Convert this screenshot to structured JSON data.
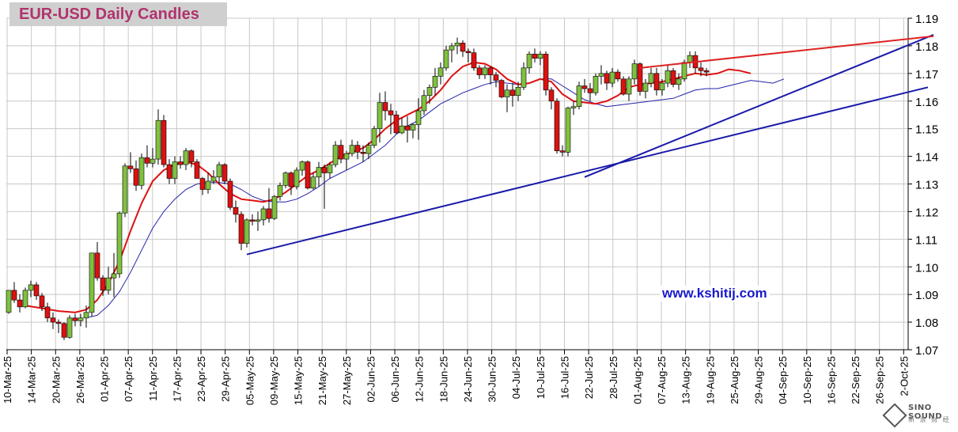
{
  "chart_data": {
    "type": "candlestick",
    "title": "EUR-USD Daily  Candles",
    "watermark": "www.kshitij.com",
    "logo": {
      "line1": "SINO SOUND",
      "line2": "新 浪 财 经"
    },
    "ylim": [
      1.07,
      1.19
    ],
    "y_ticks": [
      "1.19",
      "1.18",
      "1.17",
      "1.16",
      "1.15",
      "1.14",
      "1.13",
      "1.12",
      "1.11",
      "1.10",
      "1.09",
      "1.08",
      "1.07"
    ],
    "x_ticks": [
      "10-Mar-25",
      "14-Mar-25",
      "20-Mar-25",
      "26-Mar-25",
      "01-Apr-25",
      "07-Apr-25",
      "11-Apr-25",
      "17-Apr-25",
      "23-Apr-25",
      "29-Apr-25",
      "05-May-25",
      "09-May-25",
      "15-May-25",
      "21-May-25",
      "27-May-25",
      "02-Jun-25",
      "06-Jun-25",
      "12-Jun-25",
      "18-Jun-25",
      "24-Jun-25",
      "30-Jun-25",
      "04-Jul-25",
      "10-Jul-25",
      "16-Jul-25",
      "22-Jul-25",
      "28-Jul-25",
      "01-Aug-25",
      "07-Aug-25",
      "13-Aug-25",
      "19-Aug-25",
      "25-Aug-25",
      "29-Aug-25",
      "04-Sep-25",
      "10-Sep-25",
      "16-Sep-25",
      "22-Sep-25",
      "26-Sep-25",
      "2-Oct-25"
    ],
    "colors": {
      "up": "#80c040",
      "down": "#dd1111",
      "ma_fast": "#dd1111",
      "ma_slow": "#2222aa",
      "trend_blue": "#1a1aaa",
      "trend_red": "#dd2222",
      "grid": "#c8c8c8"
    },
    "candles": [
      [
        1.0835,
        1.0915,
        1.083,
        1.0915
      ],
      [
        1.0915,
        1.0945,
        1.087,
        1.088
      ],
      [
        1.088,
        1.09,
        1.0835,
        1.0855
      ],
      [
        1.0855,
        1.0925,
        1.085,
        1.0915
      ],
      [
        1.0915,
        1.095,
        1.089,
        1.0935
      ],
      [
        1.0935,
        1.0945,
        1.088,
        1.0895
      ],
      [
        1.0895,
        1.0905,
        1.084,
        1.0855
      ],
      [
        1.0855,
        1.087,
        1.08,
        1.0815
      ],
      [
        1.0815,
        1.0835,
        1.0775,
        1.08
      ],
      [
        1.08,
        1.081,
        1.076,
        1.0795
      ],
      [
        1.0795,
        1.08,
        1.0735,
        1.0745
      ],
      [
        1.0745,
        1.0825,
        1.074,
        1.0815
      ],
      [
        1.0815,
        1.083,
        1.0785,
        1.0805
      ],
      [
        1.0805,
        1.083,
        1.0785,
        1.0815
      ],
      [
        1.0815,
        1.086,
        1.078,
        1.0835
      ],
      [
        1.0835,
        1.105,
        1.082,
        1.105
      ],
      [
        1.105,
        1.109,
        1.095,
        1.096
      ],
      [
        1.096,
        1.097,
        1.0895,
        1.0915
      ],
      [
        1.0915,
        1.1,
        1.09,
        1.096
      ],
      [
        1.096,
        1.105,
        1.089,
        1.0975
      ],
      [
        1.0975,
        1.12,
        1.096,
        1.1195
      ],
      [
        1.1195,
        1.1375,
        1.118,
        1.1365
      ],
      [
        1.1365,
        1.1415,
        1.134,
        1.1355
      ],
      [
        1.1355,
        1.1385,
        1.1275,
        1.1295
      ],
      [
        1.1295,
        1.141,
        1.128,
        1.1395
      ],
      [
        1.1395,
        1.144,
        1.136,
        1.1375
      ],
      [
        1.1375,
        1.143,
        1.136,
        1.139
      ],
      [
        1.139,
        1.157,
        1.137,
        1.153
      ],
      [
        1.153,
        1.155,
        1.136,
        1.137
      ],
      [
        1.137,
        1.139,
        1.13,
        1.132
      ],
      [
        1.132,
        1.14,
        1.13,
        1.138
      ],
      [
        1.138,
        1.14,
        1.1355,
        1.137
      ],
      [
        1.137,
        1.143,
        1.135,
        1.142
      ],
      [
        1.142,
        1.1425,
        1.136,
        1.138
      ],
      [
        1.138,
        1.139,
        1.132,
        1.132
      ],
      [
        1.132,
        1.1325,
        1.126,
        1.128
      ],
      [
        1.128,
        1.134,
        1.1265,
        1.131
      ],
      [
        1.131,
        1.135,
        1.13,
        1.1325
      ],
      [
        1.1325,
        1.138,
        1.13,
        1.137
      ],
      [
        1.137,
        1.1375,
        1.13,
        1.131
      ],
      [
        1.131,
        1.132,
        1.1205,
        1.1215
      ],
      [
        1.1215,
        1.124,
        1.116,
        1.119
      ],
      [
        1.119,
        1.12,
        1.106,
        1.1085
      ],
      [
        1.1085,
        1.1175,
        1.107,
        1.117
      ],
      [
        1.117,
        1.119,
        1.115,
        1.1165
      ],
      [
        1.1165,
        1.12,
        1.113,
        1.117
      ],
      [
        1.117,
        1.122,
        1.115,
        1.121
      ],
      [
        1.121,
        1.1285,
        1.116,
        1.1175
      ],
      [
        1.1175,
        1.126,
        1.117,
        1.1255
      ],
      [
        1.1255,
        1.1305,
        1.124,
        1.1295
      ],
      [
        1.1295,
        1.1345,
        1.1285,
        1.134
      ],
      [
        1.134,
        1.1345,
        1.126,
        1.129
      ],
      [
        1.129,
        1.136,
        1.128,
        1.135
      ],
      [
        1.135,
        1.1385,
        1.133,
        1.138
      ],
      [
        1.138,
        1.1385,
        1.128,
        1.1285
      ],
      [
        1.1285,
        1.134,
        1.128,
        1.1325
      ],
      [
        1.1325,
        1.138,
        1.129,
        1.136
      ],
      [
        1.136,
        1.137,
        1.121,
        1.134
      ],
      [
        1.134,
        1.138,
        1.132,
        1.137
      ],
      [
        1.137,
        1.1455,
        1.136,
        1.144
      ],
      [
        1.144,
        1.146,
        1.1375,
        1.139
      ],
      [
        1.139,
        1.142,
        1.135,
        1.141
      ],
      [
        1.141,
        1.146,
        1.14,
        1.144
      ],
      [
        1.144,
        1.1455,
        1.139,
        1.1415
      ],
      [
        1.1415,
        1.144,
        1.138,
        1.141
      ],
      [
        1.141,
        1.145,
        1.139,
        1.144
      ],
      [
        1.144,
        1.151,
        1.143,
        1.15
      ],
      [
        1.15,
        1.163,
        1.145,
        1.1595
      ],
      [
        1.1595,
        1.1635,
        1.153,
        1.1565
      ],
      [
        1.1565,
        1.159,
        1.148,
        1.155
      ],
      [
        1.155,
        1.1565,
        1.148,
        1.1485
      ],
      [
        1.1485,
        1.154,
        1.148,
        1.151
      ],
      [
        1.151,
        1.1545,
        1.145,
        1.1495
      ],
      [
        1.1495,
        1.152,
        1.1465,
        1.1515
      ],
      [
        1.1515,
        1.161,
        1.146,
        1.1565
      ],
      [
        1.1565,
        1.164,
        1.155,
        1.162
      ],
      [
        1.162,
        1.166,
        1.159,
        1.165
      ],
      [
        1.165,
        1.172,
        1.162,
        1.169
      ],
      [
        1.169,
        1.174,
        1.166,
        1.172
      ],
      [
        1.172,
        1.18,
        1.171,
        1.1785
      ],
      [
        1.1785,
        1.181,
        1.174,
        1.18
      ],
      [
        1.18,
        1.183,
        1.177,
        1.181
      ],
      [
        1.181,
        1.182,
        1.176,
        1.178
      ],
      [
        1.178,
        1.179,
        1.174,
        1.1775
      ],
      [
        1.1775,
        1.179,
        1.171,
        1.172
      ],
      [
        1.172,
        1.173,
        1.168,
        1.1695
      ],
      [
        1.1695,
        1.173,
        1.168,
        1.172
      ],
      [
        1.172,
        1.1725,
        1.166,
        1.1695
      ],
      [
        1.1695,
        1.1705,
        1.165,
        1.1675
      ],
      [
        1.1675,
        1.168,
        1.161,
        1.1615
      ],
      [
        1.1615,
        1.166,
        1.156,
        1.164
      ],
      [
        1.164,
        1.1665,
        1.158,
        1.162
      ],
      [
        1.162,
        1.167,
        1.16,
        1.165
      ],
      [
        1.165,
        1.174,
        1.164,
        1.172
      ],
      [
        1.172,
        1.178,
        1.17,
        1.177
      ],
      [
        1.177,
        1.179,
        1.174,
        1.1755
      ],
      [
        1.1755,
        1.178,
        1.173,
        1.177
      ],
      [
        1.177,
        1.178,
        1.162,
        1.164
      ],
      [
        1.164,
        1.165,
        1.157,
        1.16
      ],
      [
        1.16,
        1.161,
        1.141,
        1.142
      ],
      [
        1.142,
        1.144,
        1.14,
        1.1415
      ],
      [
        1.1415,
        1.158,
        1.14,
        1.1575
      ],
      [
        1.1575,
        1.16,
        1.155,
        1.158
      ],
      [
        1.158,
        1.167,
        1.157,
        1.1655
      ],
      [
        1.1655,
        1.168,
        1.163,
        1.1645
      ],
      [
        1.1645,
        1.1665,
        1.16,
        1.163
      ],
      [
        1.163,
        1.17,
        1.162,
        1.169
      ],
      [
        1.169,
        1.173,
        1.166,
        1.17
      ],
      [
        1.17,
        1.171,
        1.164,
        1.1665
      ],
      [
        1.1665,
        1.172,
        1.165,
        1.1705
      ],
      [
        1.1705,
        1.1715,
        1.167,
        1.168
      ],
      [
        1.168,
        1.169,
        1.162,
        1.1625
      ],
      [
        1.1625,
        1.169,
        1.16,
        1.168
      ],
      [
        1.168,
        1.175,
        1.166,
        1.1735
      ],
      [
        1.1735,
        1.174,
        1.162,
        1.1635
      ],
      [
        1.1635,
        1.168,
        1.161,
        1.1665
      ],
      [
        1.1665,
        1.172,
        1.165,
        1.17
      ],
      [
        1.17,
        1.172,
        1.162,
        1.164
      ],
      [
        1.164,
        1.168,
        1.162,
        1.1665
      ],
      [
        1.1665,
        1.173,
        1.165,
        1.171
      ],
      [
        1.171,
        1.172,
        1.165,
        1.166
      ],
      [
        1.166,
        1.17,
        1.164,
        1.168
      ],
      [
        1.168,
        1.175,
        1.167,
        1.174
      ],
      [
        1.174,
        1.178,
        1.172,
        1.1765
      ],
      [
        1.1765,
        1.178,
        1.17,
        1.172
      ],
      [
        1.172,
        1.174,
        1.169,
        1.171
      ],
      [
        1.171,
        1.172,
        1.169,
        1.1705
      ]
    ],
    "ma_fast": [
      [
        3,
        1.086
      ],
      [
        6,
        1.085
      ],
      [
        9,
        1.084
      ],
      [
        12,
        1.0835
      ],
      [
        14,
        1.0845
      ],
      [
        16,
        1.088
      ],
      [
        18,
        1.094
      ],
      [
        20,
        1.102
      ],
      [
        22,
        1.113
      ],
      [
        24,
        1.123
      ],
      [
        26,
        1.131
      ],
      [
        28,
        1.135
      ],
      [
        30,
        1.137
      ],
      [
        32,
        1.138
      ],
      [
        34,
        1.137
      ],
      [
        36,
        1.134
      ],
      [
        38,
        1.13
      ],
      [
        40,
        1.1265
      ],
      [
        42,
        1.1245
      ],
      [
        44,
        1.124
      ],
      [
        46,
        1.1235
      ],
      [
        48,
        1.1245
      ],
      [
        50,
        1.127
      ],
      [
        52,
        1.13
      ],
      [
        54,
        1.133
      ],
      [
        56,
        1.135
      ],
      [
        58,
        1.1375
      ],
      [
        60,
        1.14
      ],
      [
        62,
        1.1415
      ],
      [
        64,
        1.143
      ],
      [
        66,
        1.146
      ],
      [
        68,
        1.15
      ],
      [
        70,
        1.153
      ],
      [
        72,
        1.155
      ],
      [
        74,
        1.157
      ],
      [
        76,
        1.16
      ],
      [
        78,
        1.164
      ],
      [
        80,
        1.169
      ],
      [
        82,
        1.1725
      ],
      [
        84,
        1.174
      ],
      [
        86,
        1.1735
      ],
      [
        88,
        1.1715
      ],
      [
        90,
        1.168
      ],
      [
        92,
        1.166
      ],
      [
        94,
        1.1665
      ],
      [
        96,
        1.168
      ],
      [
        98,
        1.167
      ],
      [
        100,
        1.1625
      ],
      [
        102,
        1.16
      ],
      [
        104,
        1.1595
      ],
      [
        106,
        1.159
      ],
      [
        108,
        1.16
      ],
      [
        110,
        1.162
      ],
      [
        112,
        1.165
      ],
      [
        114,
        1.166
      ],
      [
        116,
        1.1665
      ],
      [
        118,
        1.167
      ],
      [
        120,
        1.168
      ],
      [
        122,
        1.169
      ],
      [
        124,
        1.17
      ],
      [
        126,
        1.1695
      ],
      [
        128,
        1.17
      ],
      [
        130,
        1.1715
      ],
      [
        132,
        1.171
      ],
      [
        134,
        1.17
      ]
    ],
    "ma_slow": [
      [
        14,
        1.0815
      ],
      [
        16,
        1.0825
      ],
      [
        18,
        1.086
      ],
      [
        20,
        1.091
      ],
      [
        22,
        1.098
      ],
      [
        24,
        1.106
      ],
      [
        26,
        1.114
      ],
      [
        28,
        1.12
      ],
      [
        30,
        1.1245
      ],
      [
        32,
        1.128
      ],
      [
        34,
        1.13
      ],
      [
        36,
        1.1305
      ],
      [
        38,
        1.1305
      ],
      [
        40,
        1.13
      ],
      [
        42,
        1.128
      ],
      [
        44,
        1.1255
      ],
      [
        46,
        1.124
      ],
      [
        48,
        1.1235
      ],
      [
        50,
        1.1235
      ],
      [
        52,
        1.1245
      ],
      [
        54,
        1.1265
      ],
      [
        56,
        1.129
      ],
      [
        58,
        1.132
      ],
      [
        60,
        1.134
      ],
      [
        62,
        1.136
      ],
      [
        64,
        1.138
      ],
      [
        66,
        1.141
      ],
      [
        68,
        1.144
      ],
      [
        70,
        1.148
      ],
      [
        72,
        1.151
      ],
      [
        74,
        1.153
      ],
      [
        76,
        1.156
      ],
      [
        78,
        1.159
      ],
      [
        80,
        1.161
      ],
      [
        82,
        1.163
      ],
      [
        84,
        1.1645
      ],
      [
        86,
        1.166
      ],
      [
        88,
        1.167
      ],
      [
        90,
        1.1665
      ],
      [
        92,
        1.166
      ],
      [
        94,
        1.1665
      ],
      [
        96,
        1.168
      ],
      [
        98,
        1.168
      ],
      [
        100,
        1.1655
      ],
      [
        102,
        1.163
      ],
      [
        104,
        1.1605
      ],
      [
        106,
        1.159
      ],
      [
        108,
        1.158
      ],
      [
        110,
        1.1585
      ],
      [
        112,
        1.159
      ],
      [
        114,
        1.1595
      ],
      [
        116,
        1.16
      ],
      [
        118,
        1.1605
      ],
      [
        120,
        1.161
      ],
      [
        122,
        1.1625
      ],
      [
        124,
        1.164
      ],
      [
        126,
        1.1645
      ],
      [
        128,
        1.1645
      ],
      [
        130,
        1.1655
      ],
      [
        132,
        1.1665
      ],
      [
        134,
        1.1675
      ],
      [
        136,
        1.167
      ],
      [
        138,
        1.1665
      ],
      [
        140,
        1.168
      ]
    ],
    "trendlines": [
      {
        "color": "trend_blue",
        "from": [
          43,
          1.1045
        ],
        "to": [
          166,
          1.165
        ]
      },
      {
        "color": "trend_blue",
        "from": [
          104,
          1.1325
        ],
        "to": [
          167,
          1.184
        ]
      },
      {
        "color": "trend_red",
        "from": [
          114,
          1.172
        ],
        "to": [
          167,
          1.1835
        ]
      }
    ]
  }
}
